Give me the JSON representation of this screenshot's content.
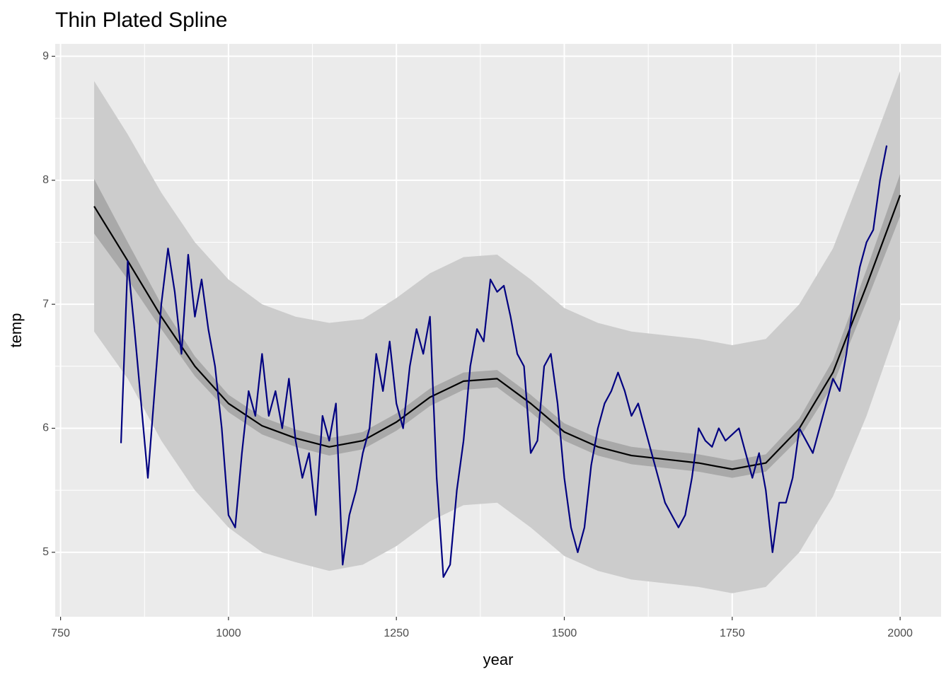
{
  "chart_data": {
    "type": "line",
    "title": "Thin Plated Spline",
    "x_label": "year",
    "y_label": "temp",
    "xlim": [
      742,
      2061
    ],
    "ylim": [
      4.48,
      9.1
    ],
    "xticks": [
      750,
      1000,
      1250,
      1500,
      1750,
      2000
    ],
    "yticks": [
      5,
      6,
      7,
      8,
      9
    ],
    "x_minor_breaks": [
      875,
      1125,
      1375,
      1625,
      1875
    ],
    "y_minor_breaks": [
      5.5,
      6.5,
      7.5,
      8.5
    ],
    "grid": true,
    "panel_color": "#ebebeb",
    "prediction": {
      "color": "#cccccc",
      "x": [
        800,
        850,
        900,
        950,
        1000,
        1050,
        1100,
        1150,
        1200,
        1250,
        1300,
        1350,
        1400,
        1450,
        1500,
        1550,
        1600,
        1650,
        1700,
        1750,
        1800,
        1850,
        1900,
        1950,
        2000
      ],
      "lower": [
        6.78,
        6.4,
        5.9,
        5.5,
        5.2,
        5.0,
        4.92,
        4.85,
        4.9,
        5.05,
        5.25,
        5.38,
        5.4,
        5.2,
        4.97,
        4.85,
        4.78,
        4.75,
        4.72,
        4.67,
        4.72,
        5.0,
        5.45,
        6.1,
        6.88
      ],
      "upper": [
        8.8,
        8.37,
        7.9,
        7.5,
        7.2,
        7.0,
        6.9,
        6.85,
        6.88,
        7.05,
        7.25,
        7.38,
        7.4,
        7.2,
        6.97,
        6.85,
        6.78,
        6.75,
        6.72,
        6.67,
        6.72,
        7.0,
        7.45,
        8.15,
        8.88
      ]
    },
    "confidence": {
      "color": "#a9a9a9",
      "x": [
        800,
        850,
        900,
        950,
        1000,
        1050,
        1100,
        1150,
        1200,
        1250,
        1300,
        1350,
        1400,
        1450,
        1500,
        1550,
        1600,
        1650,
        1700,
        1750,
        1800,
        1850,
        1900,
        1950,
        2000
      ],
      "lower": [
        7.57,
        7.2,
        6.8,
        6.42,
        6.13,
        5.95,
        5.85,
        5.78,
        5.83,
        5.98,
        6.18,
        6.31,
        6.33,
        6.13,
        5.9,
        5.78,
        5.71,
        5.68,
        5.65,
        5.6,
        5.65,
        5.92,
        6.35,
        7.02,
        7.71
      ],
      "upper": [
        8.01,
        7.5,
        7.0,
        6.58,
        6.27,
        6.09,
        5.99,
        5.92,
        5.97,
        6.12,
        6.32,
        6.45,
        6.47,
        6.27,
        6.04,
        5.92,
        5.85,
        5.82,
        5.79,
        5.74,
        5.79,
        6.08,
        6.55,
        7.28,
        8.05
      ]
    },
    "fit": {
      "color": "#000000",
      "x": [
        800,
        850,
        900,
        950,
        1000,
        1050,
        1100,
        1150,
        1200,
        1250,
        1300,
        1350,
        1400,
        1450,
        1500,
        1550,
        1600,
        1650,
        1700,
        1750,
        1800,
        1850,
        1900,
        1950,
        2000
      ],
      "values": [
        7.79,
        7.35,
        6.9,
        6.5,
        6.2,
        6.02,
        5.92,
        5.85,
        5.9,
        6.05,
        6.25,
        6.38,
        6.4,
        6.2,
        5.97,
        5.85,
        5.78,
        5.75,
        5.72,
        5.67,
        5.72,
        6.0,
        6.45,
        7.15,
        7.88
      ]
    },
    "observed": {
      "color": "#000080",
      "x": [
        840,
        850,
        860,
        870,
        880,
        890,
        900,
        910,
        920,
        930,
        940,
        950,
        960,
        970,
        980,
        990,
        1000,
        1010,
        1020,
        1030,
        1040,
        1050,
        1060,
        1070,
        1080,
        1090,
        1100,
        1110,
        1120,
        1130,
        1140,
        1150,
        1160,
        1170,
        1180,
        1190,
        1200,
        1210,
        1220,
        1230,
        1240,
        1250,
        1260,
        1270,
        1280,
        1290,
        1300,
        1310,
        1320,
        1330,
        1340,
        1350,
        1360,
        1370,
        1380,
        1390,
        1400,
        1410,
        1420,
        1430,
        1440,
        1450,
        1460,
        1470,
        1480,
        1490,
        1500,
        1510,
        1520,
        1530,
        1540,
        1550,
        1560,
        1570,
        1580,
        1590,
        1600,
        1610,
        1620,
        1630,
        1640,
        1650,
        1660,
        1670,
        1680,
        1690,
        1700,
        1710,
        1720,
        1730,
        1740,
        1750,
        1760,
        1770,
        1780,
        1790,
        1800,
        1810,
        1820,
        1830,
        1840,
        1850,
        1860,
        1870,
        1880,
        1890,
        1900,
        1910,
        1920,
        1930,
        1940,
        1950,
        1960,
        1970,
        1980
      ],
      "values": [
        5.88,
        7.35,
        6.8,
        6.2,
        5.6,
        6.3,
        7.0,
        7.45,
        7.1,
        6.6,
        7.4,
        6.9,
        7.2,
        6.8,
        6.5,
        6.0,
        5.3,
        5.2,
        5.8,
        6.3,
        6.1,
        6.6,
        6.1,
        6.3,
        6.0,
        6.4,
        5.9,
        5.6,
        5.8,
        5.3,
        6.1,
        5.9,
        6.2,
        4.9,
        5.3,
        5.5,
        5.8,
        6.0,
        6.6,
        6.3,
        6.7,
        6.2,
        6.0,
        6.5,
        6.8,
        6.6,
        6.9,
        5.6,
        4.8,
        4.9,
        5.5,
        5.9,
        6.5,
        6.8,
        6.7,
        7.2,
        7.1,
        7.15,
        6.9,
        6.6,
        6.5,
        5.8,
        5.9,
        6.5,
        6.6,
        6.2,
        5.6,
        5.2,
        5.0,
        5.2,
        5.7,
        6.0,
        6.2,
        6.3,
        6.45,
        6.3,
        6.1,
        6.2,
        6.0,
        5.8,
        5.6,
        5.4,
        5.3,
        5.2,
        5.3,
        5.6,
        6.0,
        5.9,
        5.85,
        6.0,
        5.9,
        5.95,
        6.0,
        5.8,
        5.6,
        5.8,
        5.5,
        5.0,
        5.4,
        5.4,
        5.6,
        6.0,
        5.9,
        5.8,
        6.0,
        6.2,
        6.4,
        6.3,
        6.6,
        7.0,
        7.3,
        7.5,
        7.6,
        8.0,
        8.28
      ]
    }
  }
}
